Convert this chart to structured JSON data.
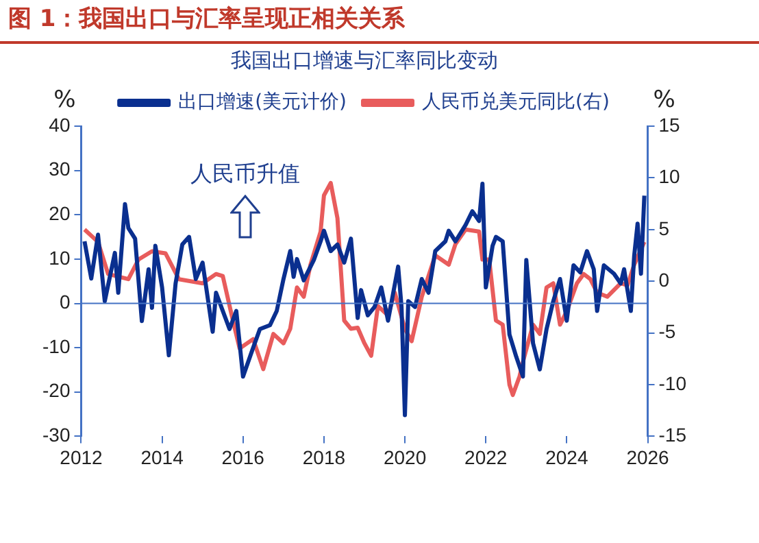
{
  "chart_data": {
    "type": "line",
    "title": "图 1：我国出口与汇率呈现正相关关系",
    "subtitle": "我国出口增速与汇率同比变动",
    "ylabel": "%",
    "y2label": "%",
    "xlim": [
      "2012",
      "2026"
    ],
    "xticks": [
      "2012",
      "2014",
      "2016",
      "2018",
      "2020",
      "2022",
      "2024",
      "2026"
    ],
    "ylim": [
      -30,
      40
    ],
    "yticks": [
      -30,
      -20,
      -10,
      0,
      10,
      20,
      30,
      40
    ],
    "y2lim": [
      -15,
      15
    ],
    "y2ticks": [
      -15,
      -10,
      -5,
      0,
      5,
      10,
      15
    ],
    "legend": "top",
    "grid": false,
    "marker": "none",
    "line_style": "solid",
    "ref_lines": [
      {
        "axis": "y",
        "value": 0,
        "color": "#4472c4"
      }
    ],
    "annotations": [
      "人民币升值"
    ],
    "series": [
      {
        "name": "出口增速(美元计价)",
        "color": "#0a2f8f",
        "axis": "y",
        "x": [
          "2012-02",
          "2012-04",
          "2012-06",
          "2012-08",
          "2012-11",
          "2012-12",
          "2013-02",
          "2013-03",
          "2013-05",
          "2013-07",
          "2013-09",
          "2013-10",
          "2013-11",
          "2014-01",
          "2014-03",
          "2014-05",
          "2014-07",
          "2014-09",
          "2014-11",
          "2015-01",
          "2015-04",
          "2015-05",
          "2015-09",
          "2015-11",
          "2016-01",
          "2016-04",
          "2016-06",
          "2016-09",
          "2016-11",
          "2017-01",
          "2017-03",
          "2017-04",
          "2017-05",
          "2017-07",
          "2017-10",
          "2017-12",
          "2018-01",
          "2018-03",
          "2018-05",
          "2018-07",
          "2018-09",
          "2018-11",
          "2018-12",
          "2019-02",
          "2019-04",
          "2019-06",
          "2019-08",
          "2019-11",
          "2019-12",
          "2020-01",
          "2020-02",
          "2020-04",
          "2020-06",
          "2020-08",
          "2020-10",
          "2021-01",
          "2021-02",
          "2021-04",
          "2021-07",
          "2021-09",
          "2021-11",
          "2021-12",
          "2022-01",
          "2022-03",
          "2022-04",
          "2022-06",
          "2022-08",
          "2022-10",
          "2022-12",
          "2023-01",
          "2023-03",
          "2023-05",
          "2023-07",
          "2023-09",
          "2023-11",
          "2024-01",
          "2024-03",
          "2024-05",
          "2024-07",
          "2024-09",
          "2024-10",
          "2024-12",
          "2025-03",
          "2025-05",
          "2025-06",
          "2025-08",
          "2025-09",
          "2025-10",
          "2025-11",
          "2025-12"
        ],
        "values": [
          14,
          5.6,
          15.5,
          0.5,
          11.4,
          2.4,
          22.4,
          17,
          14.6,
          -4,
          7.7,
          -1,
          13,
          3.6,
          -11.7,
          4.5,
          13.3,
          15,
          5.5,
          9.2,
          -6.4,
          2.4,
          -5.8,
          -1.7,
          -16.5,
          -10,
          -5.8,
          -4.9,
          -1.7,
          5.5,
          11.8,
          6,
          10,
          5.2,
          9.8,
          14,
          16.4,
          11.8,
          13.3,
          9.2,
          14.6,
          -3.3,
          3,
          -2.7,
          -0.8,
          3.6,
          -3.9,
          8.3,
          -0.8,
          -25.2,
          0.5,
          -0.8,
          5.5,
          2.4,
          11.8,
          14,
          16.4,
          14,
          17.7,
          20.8,
          18.6,
          27,
          3.6,
          13,
          15,
          14,
          -7,
          -12,
          -16.5,
          9.8,
          -9,
          -14.9,
          -5.8,
          0.5,
          5.5,
          -3.9,
          8.6,
          7,
          11.8,
          7.7,
          -1.7,
          8.6,
          6.7,
          4.5,
          7.7,
          -1.7,
          10.8,
          18,
          6.7,
          24.3
        ]
      },
      {
        "name": "人民币兑美元同比(右)",
        "color": "#e85c5c",
        "axis": "y2",
        "x": [
          "2012-02",
          "2012-06",
          "2012-09",
          "2013-03",
          "2013-06",
          "2013-10",
          "2014-02",
          "2014-06",
          "2015-01",
          "2015-05",
          "2015-07",
          "2015-10",
          "2015-12",
          "2016-04",
          "2016-07",
          "2016-10",
          "2017-01",
          "2017-03",
          "2017-05",
          "2017-07",
          "2017-09",
          "2017-12",
          "2018-01",
          "2018-03",
          "2018-05",
          "2018-07",
          "2018-09",
          "2018-11",
          "2019-01",
          "2019-03",
          "2019-05",
          "2019-08",
          "2019-10",
          "2020-01",
          "2020-03",
          "2020-06",
          "2020-10",
          "2021-02",
          "2021-04",
          "2021-07",
          "2021-11",
          "2021-12",
          "2022-02",
          "2022-04",
          "2022-06",
          "2022-08",
          "2022-09",
          "2022-11",
          "2022-12",
          "2023-03",
          "2023-05",
          "2023-07",
          "2023-09",
          "2023-11",
          "2024-01",
          "2024-04",
          "2024-06",
          "2024-08",
          "2024-10",
          "2025-01",
          "2025-05",
          "2025-07",
          "2025-09",
          "2025-12"
        ],
        "values": [
          5,
          3.8,
          0.7,
          0.2,
          2.1,
          2.9,
          2.7,
          0.2,
          -0.2,
          0.7,
          0.5,
          -3.8,
          -6.5,
          -5.6,
          -8.5,
          -5.1,
          -6,
          -4.6,
          -0.6,
          -1.5,
          1.6,
          4.8,
          8.3,
          9.5,
          6.1,
          -3.8,
          -4.6,
          -4.5,
          -6,
          -7.2,
          -2.4,
          -3.3,
          -1.1,
          -4.6,
          -5.8,
          -1.5,
          2.5,
          1.6,
          3.6,
          5,
          4.8,
          2.1,
          2.1,
          -3.8,
          -4.2,
          -10,
          -11,
          -9.2,
          -7.8,
          -4.2,
          -5.1,
          -0.6,
          -0.2,
          -4.2,
          -2.9,
          -0.2,
          0.7,
          0.2,
          -1.1,
          -1.5,
          -0.2,
          -0.4,
          1.6,
          3.8
        ]
      }
    ]
  }
}
